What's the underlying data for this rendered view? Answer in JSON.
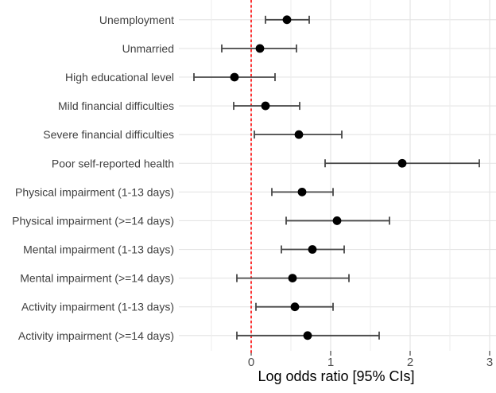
{
  "chart_data": {
    "type": "scatter",
    "subtype": "forest_plot_point_with_ci",
    "title": "",
    "xlabel": "Log odds ratio [95% CIs]",
    "ylabel": "",
    "x_ticks": [
      0,
      1,
      2,
      3
    ],
    "x_tick_labels": [
      "0",
      "1",
      "2",
      "3"
    ],
    "x_minor_gridlines": [
      -0.5,
      0.5,
      1.5,
      2.5
    ],
    "xlim": [
      -0.91,
      3.08
    ],
    "grid": "on",
    "legend": "none",
    "reference_line": {
      "x": 0,
      "style": "dashed",
      "color": "#ff0000"
    },
    "points": [
      {
        "category": "Unemployment",
        "estimate": 0.45,
        "ci_low": 0.18,
        "ci_high": 0.73
      },
      {
        "category": "Unmarried",
        "estimate": 0.11,
        "ci_low": -0.37,
        "ci_high": 0.57
      },
      {
        "category": "High educational level",
        "estimate": -0.21,
        "ci_low": -0.72,
        "ci_high": 0.3
      },
      {
        "category": "Mild financial difficulties",
        "estimate": 0.18,
        "ci_low": -0.22,
        "ci_high": 0.61
      },
      {
        "category": "Severe financial difficulties",
        "estimate": 0.6,
        "ci_low": 0.04,
        "ci_high": 1.14
      },
      {
        "category": "Poor self-reported health",
        "estimate": 1.9,
        "ci_low": 0.93,
        "ci_high": 2.87
      },
      {
        "category": "Physical impairment (1-13 days)",
        "estimate": 0.64,
        "ci_low": 0.26,
        "ci_high": 1.03
      },
      {
        "category": "Physical impairment (>=14 days)",
        "estimate": 1.08,
        "ci_low": 0.44,
        "ci_high": 1.74
      },
      {
        "category": "Mental impairment (1-13 days)",
        "estimate": 0.77,
        "ci_low": 0.38,
        "ci_high": 1.17
      },
      {
        "category": "Mental impairment (>=14 days)",
        "estimate": 0.52,
        "ci_low": -0.18,
        "ci_high": 1.23
      },
      {
        "category": "Activity impairment (1-13 days)",
        "estimate": 0.55,
        "ci_low": 0.06,
        "ci_high": 1.03
      },
      {
        "category": "Activity impairment (>=14 days)",
        "estimate": 0.71,
        "ci_low": -0.18,
        "ci_high": 1.61
      }
    ],
    "colors": {
      "point": "#000000",
      "error_bar": "#474747",
      "grid_major": "#e4e4e4",
      "grid_minor": "#ededed",
      "tick_mark": "#333333",
      "axis_tick_text": "#4d4d4d",
      "category_text": "#404040",
      "axis_title_text": "#000000",
      "reference_line": "#ff0000",
      "background": "#ffffff"
    }
  }
}
